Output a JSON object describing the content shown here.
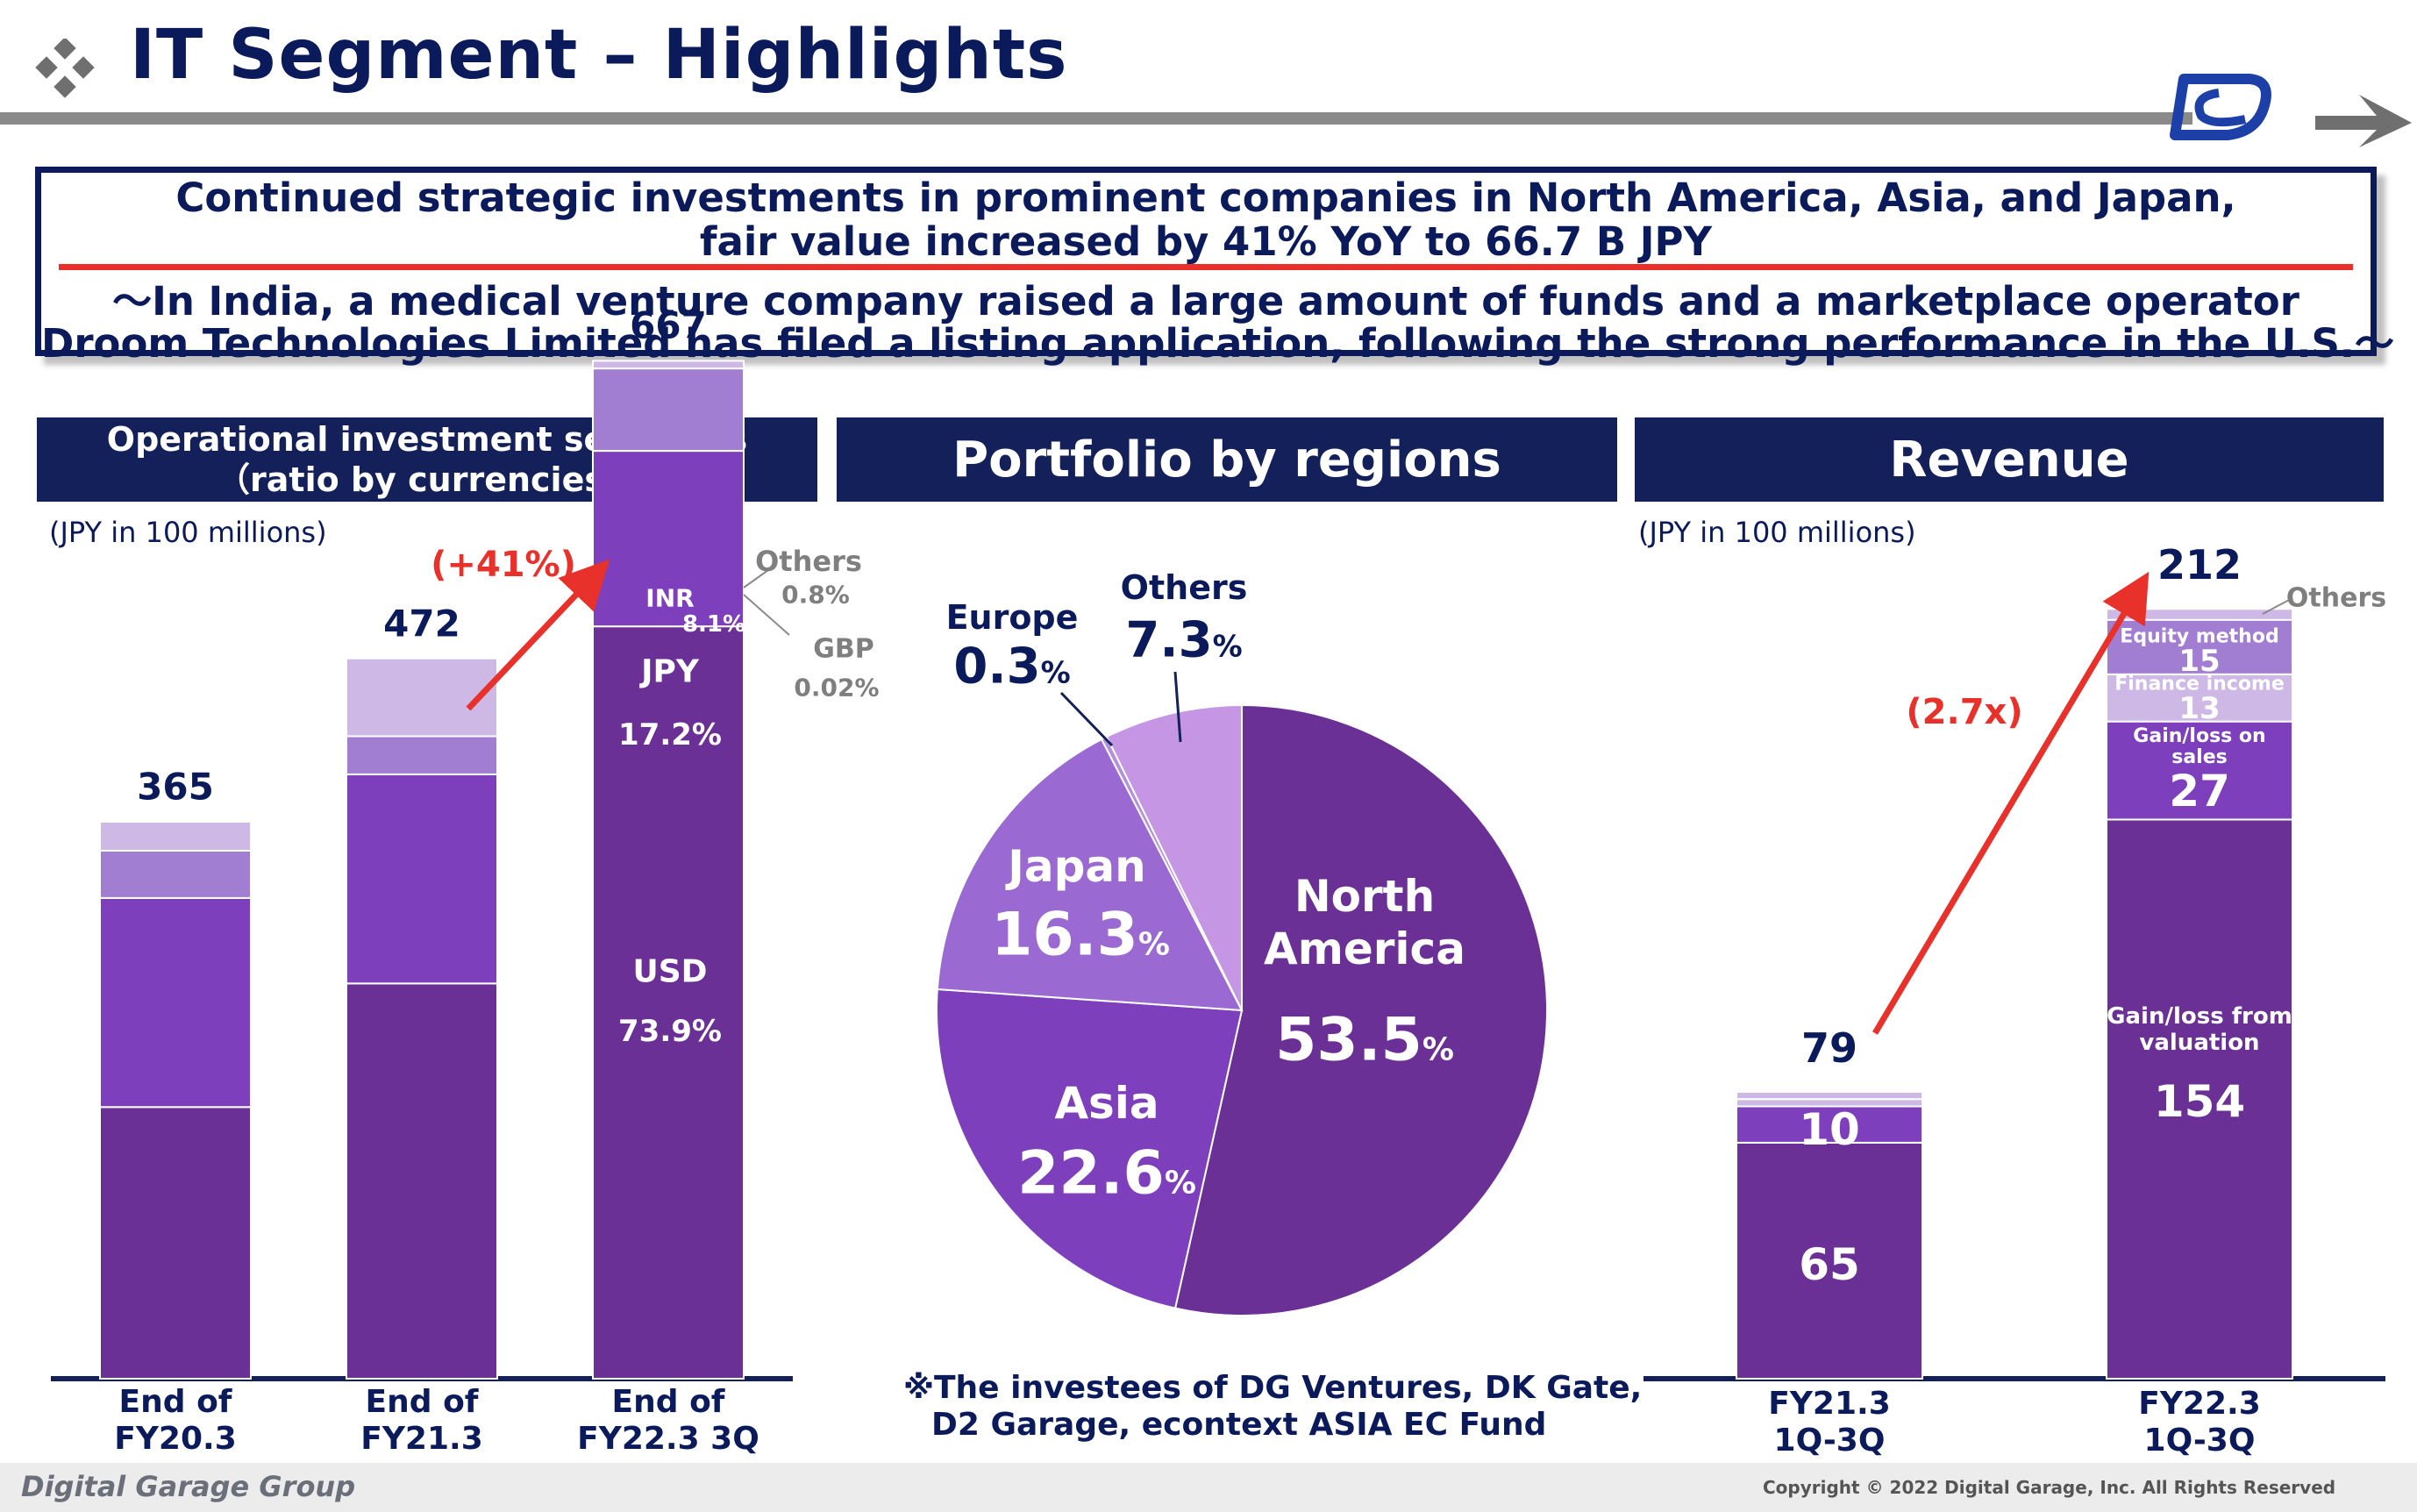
{
  "header": {
    "title": "IT Segment – Highlights"
  },
  "headline": {
    "line1": "Continued strategic investments in prominent companies in North America, Asia, and Japan,",
    "line2": "fair value increased by 41% YoY to 66.7 B JPY",
    "line3": "～In India, a medical venture company raised a large amount of funds and a marketplace operator",
    "line4": "Droom Technologies Limited has filed a listing application, following the strong performance in the U.S.～"
  },
  "panels": {
    "left_title_1": "Operational investment securities",
    "left_title_2": "（ratio by currencies）",
    "center_title": "Portfolio by regions",
    "right_title": "Revenue",
    "unit_left": "(JPY in 100 millions)",
    "unit_right": "(JPY in 100 millions)"
  },
  "footnote": {
    "line1": "※The investees of DG Ventures, DK Gate,",
    "line2": "D2 Garage, econtext ASIA EC Fund"
  },
  "footer": {
    "logo": "Digital Garage Group",
    "copyright": "Copyright © 2022 Digital Garage, Inc. All Rights Reserved"
  },
  "colors": {
    "navy": "#14205a",
    "red": "#e8312a",
    "purple_dark": "#6a3096",
    "purple_mid": "#7e3fbd",
    "purple_light": "#a27ed3",
    "purple_pale": "#cdb8e6"
  },
  "chart_data": [
    {
      "type": "bar",
      "stacked": true,
      "categories": [
        "End of FY20.3",
        "End of FY21.3",
        "End of FY22.3 3Q"
      ],
      "category_labels": [
        [
          "End of",
          "FY20.3"
        ],
        [
          "End of",
          "FY21.3"
        ],
        [
          "End of",
          "FY22.3 3Q"
        ]
      ],
      "totals": [
        365,
        472,
        667
      ],
      "series": [
        {
          "name": "USD",
          "values": [
            178,
            259,
            493
          ]
        },
        {
          "name": "JPY",
          "values": [
            137,
            137,
            115
          ]
        },
        {
          "name": "INR",
          "values": [
            31,
            25,
            54
          ]
        },
        {
          "name": "Others",
          "values": [
            19,
            51,
            5
          ]
        }
      ],
      "labels_3q": {
        "usd": "USD",
        "usd_pct": "73.9%",
        "jpy": "JPY",
        "jpy_pct": "17.2%",
        "inr": "INR",
        "inr_pct": "8.1%",
        "others": "Others",
        "others_pct": "0.8%",
        "gbp": "GBP",
        "gbp_pct": "0.02%"
      },
      "growth_label": "(+41%)",
      "ylim": [
        0,
        700
      ]
    },
    {
      "type": "pie",
      "slices": [
        {
          "name": "North America",
          "value": 53.5,
          "label_1": "North",
          "label_2": "America",
          "pct": "53.5",
          "color": "#6a3096"
        },
        {
          "name": "Asia",
          "value": 22.6,
          "label_1": "Asia",
          "pct": "22.6",
          "color": "#7e3fbd"
        },
        {
          "name": "Japan",
          "value": 16.3,
          "label_1": "Japan",
          "pct": "16.3",
          "color": "#9a6ad2"
        },
        {
          "name": "Europe",
          "value": 0.3,
          "label_1": "Europe",
          "pct": "0.3",
          "color": "#b48fdc"
        },
        {
          "name": "Others",
          "value": 7.3,
          "label_1": "Others",
          "pct": "7.3",
          "color": "#c596e3"
        }
      ],
      "pct_sign": "%"
    },
    {
      "type": "bar",
      "stacked": true,
      "categories": [
        "FY21.3 1Q-3Q",
        "FY22.3 1Q-3Q"
      ],
      "category_labels": [
        [
          "FY21.3",
          "1Q-3Q"
        ],
        [
          "FY22.3",
          "1Q-3Q"
        ]
      ],
      "totals": [
        79,
        212
      ],
      "series": [
        {
          "name": "Gain/loss from valuation",
          "values": [
            65,
            154
          ]
        },
        {
          "name": "Gain/loss on sales",
          "values": [
            10,
            27
          ]
        },
        {
          "name": "Finance income",
          "values": [
            2,
            13
          ]
        },
        {
          "name": "Equity method",
          "values": [
            0,
            15
          ]
        },
        {
          "name": "Others",
          "values": [
            2,
            3
          ]
        }
      ],
      "labels": {
        "valuation_1": "Gain/loss from",
        "valuation_2": "valuation",
        "sales_1": "Gain/loss on",
        "sales_2": "sales",
        "finance": "Finance income",
        "equity": "Equity method",
        "others": "Others"
      },
      "growth_label": "(2.7x)",
      "ylim": [
        0,
        240
      ]
    }
  ]
}
